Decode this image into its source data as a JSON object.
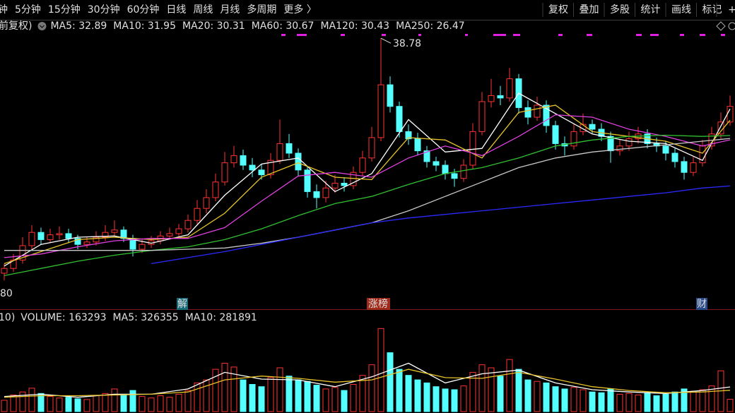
{
  "toolbar": {
    "periods": [
      "钟",
      "5分钟",
      "15分钟",
      "30分钟",
      "60分钟",
      "日线",
      "周线",
      "月线",
      "多周期",
      "更多 〉"
    ],
    "active": 5,
    "tools": [
      "复权",
      "叠加",
      "多股",
      "统计",
      "画线",
      "标记",
      "+"
    ]
  },
  "events": [
    "解",
    "涨榜",
    "财"
  ],
  "chart_data": [
    {
      "type": "candlestick",
      "legend_prefix": "前复权)",
      "up_color": "#ff3232",
      "down_color": "#54ffff",
      "ylim": [
        16.2,
        40.2
      ],
      "annotations": [
        "80"
      ],
      "open": [
        19.2,
        19.6,
        20.3,
        21.5,
        22.6,
        22.0,
        22.4,
        22.5,
        22.1,
        21.6,
        21.8,
        22.2,
        22.6,
        22.8,
        22.1,
        21.2,
        21.6,
        21.9,
        22.3,
        22.5,
        22.9,
        23.6,
        24.6,
        25.5,
        26.8,
        28.4,
        29.0,
        28.2,
        27.8,
        27.4,
        28.6,
        30.0,
        29.2,
        27.8,
        26.0,
        25.5,
        26.3,
        26.7,
        26.5,
        27.6,
        28.8,
        30.5,
        34.9,
        33.1,
        31.0,
        30.4,
        29.4,
        28.5,
        28.2,
        27.5,
        27.1,
        28.2,
        31.0,
        33.5,
        34.0,
        33.8,
        35.4,
        33.0,
        32.2,
        33.2,
        31.5,
        30.0,
        29.8,
        31.0,
        31.6,
        31.2,
        30.6,
        29.4,
        29.8,
        30.4,
        30.8,
        30.0,
        29.8,
        29.2,
        28.5,
        27.6,
        28.4,
        29.8,
        30.8,
        31.8
      ],
      "high": [
        20.0,
        20.8,
        22.2,
        23.2,
        23.0,
        22.9,
        23.1,
        22.9,
        22.4,
        22.2,
        22.7,
        23.2,
        23.6,
        23.1,
        22.4,
        22.0,
        22.3,
        22.7,
        23.0,
        23.3,
        24.1,
        25.3,
        26.2,
        27.5,
        29.3,
        29.8,
        29.5,
        28.8,
        28.3,
        29.2,
        32.0,
        30.8,
        29.6,
        28.1,
        26.6,
        26.9,
        27.4,
        27.2,
        28.1,
        29.4,
        31.4,
        38.78,
        35.6,
        33.5,
        31.6,
        30.9,
        29.8,
        28.9,
        28.6,
        27.9,
        28.7,
        31.7,
        34.3,
        35.4,
        34.8,
        36.3,
        35.8,
        33.6,
        33.9,
        33.6,
        31.9,
        30.6,
        31.6,
        32.5,
        32.0,
        31.7,
        31.0,
        30.4,
        31.0,
        31.4,
        31.2,
        30.5,
        30.2,
        29.6,
        28.9,
        28.9,
        30.3,
        31.4,
        32.6,
        34.0
      ],
      "low": [
        18.6,
        19.3,
        20.0,
        21.2,
        21.6,
        21.7,
        22.0,
        21.7,
        21.2,
        21.3,
        21.5,
        21.9,
        22.3,
        21.8,
        20.6,
        20.9,
        21.3,
        21.6,
        22.0,
        22.2,
        22.6,
        23.3,
        24.2,
        25.2,
        26.5,
        28.0,
        27.8,
        27.2,
        27.0,
        27.1,
        28.3,
        28.8,
        27.3,
        25.5,
        24.6,
        25.1,
        25.9,
        26.0,
        26.2,
        27.3,
        28.5,
        30.2,
        32.6,
        30.5,
        29.9,
        29.0,
        28.0,
        27.7,
        27.0,
        26.4,
        26.8,
        27.9,
        30.7,
        33.0,
        33.2,
        33.5,
        32.5,
        31.6,
        31.9,
        30.9,
        29.5,
        29.0,
        29.5,
        30.7,
        30.8,
        30.2,
        28.4,
        29.0,
        29.4,
        30.0,
        29.6,
        29.3,
        28.6,
        28.0,
        27.0,
        27.3,
        28.1,
        29.5,
        30.4,
        31.5
      ],
      "close": [
        19.6,
        20.3,
        21.5,
        22.6,
        22.0,
        22.4,
        22.5,
        22.1,
        21.6,
        21.8,
        22.2,
        22.6,
        22.8,
        22.1,
        21.2,
        21.6,
        21.9,
        22.3,
        22.5,
        22.9,
        23.6,
        24.6,
        25.5,
        26.8,
        28.4,
        29.0,
        28.2,
        27.8,
        27.4,
        28.6,
        30.0,
        29.2,
        27.8,
        26.0,
        25.5,
        26.3,
        26.7,
        26.5,
        27.6,
        28.8,
        30.5,
        34.9,
        33.1,
        31.0,
        30.4,
        29.4,
        28.5,
        28.2,
        27.5,
        27.1,
        28.2,
        31.0,
        33.5,
        34.0,
        33.8,
        35.4,
        33.0,
        32.2,
        33.2,
        31.5,
        30.0,
        29.8,
        31.0,
        31.6,
        31.2,
        30.6,
        29.4,
        29.8,
        30.4,
        30.8,
        30.0,
        29.8,
        29.2,
        28.5,
        27.6,
        28.4,
        29.8,
        30.8,
        31.8,
        33.1
      ],
      "ma_x": [
        0,
        4,
        8,
        12,
        16,
        20,
        24,
        28,
        32,
        36,
        40,
        44,
        48,
        52,
        56,
        60,
        64,
        68,
        72,
        76,
        79
      ],
      "series": [
        {
          "name": "MA5: 32.89",
          "color": "#ffffff",
          "values": [
            19.8,
            21.6,
            22.2,
            22.3,
            21.7,
            22.4,
            25.7,
            28.3,
            28.8,
            26.0,
            27.5,
            32.0,
            29.3,
            29.6,
            34.2,
            32.5,
            30.8,
            30.2,
            30.0,
            28.6,
            32.89
          ]
        },
        {
          "name": "MA10: 31.95",
          "color": "#e8c32a",
          "values": [
            20.0,
            21.0,
            22.0,
            22.2,
            22.0,
            22.2,
            24.2,
            27.2,
            28.4,
            27.2,
            27.0,
            30.5,
            30.3,
            28.8,
            32.6,
            33.2,
            31.0,
            30.6,
            30.2,
            29.2,
            31.95
          ]
        },
        {
          "name": "MA20: 30.31",
          "color": "#e040e0",
          "values": [
            20.5,
            20.8,
            21.4,
            21.9,
            22.1,
            22.1,
            23.0,
            25.2,
            27.3,
            27.6,
            27.2,
            28.8,
            29.8,
            29.0,
            30.6,
            32.4,
            32.2,
            31.2,
            30.6,
            29.8,
            30.31
          ]
        },
        {
          "name": "MA60: 30.67",
          "color": "#30c030",
          "values": [
            19.0,
            19.6,
            20.2,
            20.7,
            21.1,
            21.4,
            22.0,
            22.9,
            24.0,
            25.0,
            25.6,
            26.6,
            27.5,
            28.0,
            28.8,
            29.8,
            30.3,
            30.6,
            30.7,
            30.6,
            30.67
          ]
        },
        {
          "name": "MA120: 30.43",
          "color": "#c8c8c8",
          "values": [
            21.1,
            21.1,
            21.1,
            21.1,
            21.1,
            21.2,
            21.3,
            21.7,
            22.2,
            22.8,
            23.4,
            24.4,
            25.6,
            26.8,
            28.0,
            28.8,
            29.3,
            29.6,
            29.9,
            30.2,
            30.43
          ]
        },
        {
          "name": "MA250: 26.47",
          "color": "#2a2aff",
          "values": [
            null,
            null,
            null,
            null,
            20.0,
            20.5,
            21.0,
            21.6,
            22.2,
            22.8,
            23.4,
            23.8,
            24.1,
            24.4,
            24.7,
            25.0,
            25.3,
            25.6,
            25.9,
            26.3,
            26.47
          ]
        }
      ]
    },
    {
      "type": "bar",
      "legend_prefix": "10)",
      "title": "VOLUME: 163293",
      "ylim": [
        0,
        1150000
      ],
      "values": [
        150000,
        220000,
        260000,
        310000,
        240000,
        200000,
        180000,
        190000,
        170000,
        160000,
        210000,
        240000,
        300000,
        230000,
        280000,
        200000,
        180000,
        210000,
        190000,
        230000,
        280000,
        380000,
        420000,
        560000,
        640000,
        590000,
        420000,
        360000,
        330000,
        450000,
        580000,
        470000,
        420000,
        400000,
        350000,
        300000,
        320000,
        280000,
        360000,
        480000,
        620000,
        1100000,
        780000,
        560000,
        480000,
        420000,
        380000,
        330000,
        300000,
        290000,
        340000,
        520000,
        620000,
        580000,
        470000,
        690000,
        560000,
        420000,
        400000,
        380000,
        330000,
        300000,
        320000,
        290000,
        260000,
        250000,
        300000,
        230000,
        240000,
        220000,
        250000,
        210000,
        230000,
        260000,
        300000,
        270000,
        290000,
        340000,
        540000,
        163293
      ],
      "ma_x": [
        0,
        4,
        8,
        12,
        16,
        20,
        24,
        28,
        32,
        36,
        40,
        44,
        48,
        52,
        56,
        60,
        64,
        68,
        72,
        76,
        79
      ],
      "series": [
        {
          "name": "MA5: 326355",
          "color": "#ffffff",
          "values": [
            200000,
            230000,
            190000,
            230000,
            230000,
            300000,
            520000,
            430000,
            420000,
            330000,
            460000,
            640000,
            380000,
            500000,
            550000,
            380000,
            290000,
            260000,
            240000,
            280000,
            326355
          ]
        },
        {
          "name": "MA10: 281891",
          "color": "#e8c32a",
          "values": [
            190000,
            210000,
            210000,
            220000,
            230000,
            260000,
            420000,
            470000,
            440000,
            390000,
            420000,
            560000,
            450000,
            440000,
            520000,
            430000,
            330000,
            280000,
            250000,
            260000,
            281891
          ]
        }
      ]
    }
  ]
}
